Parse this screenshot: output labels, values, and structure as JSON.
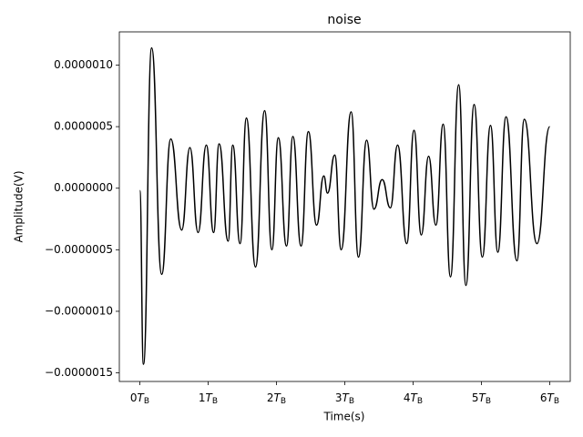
{
  "chart_data": {
    "type": "line",
    "title": "noise",
    "x_label": "Time(s)",
    "y_label": "Amplitude(V)",
    "x": [
      0,
      0.053,
      0.173,
      0.32,
      0.453,
      0.613,
      0.733,
      0.853,
      0.973,
      1.08,
      1.16,
      1.293,
      1.36,
      1.467,
      1.56,
      1.693,
      1.827,
      1.933,
      2.027,
      2.147,
      2.24,
      2.36,
      2.467,
      2.587,
      2.693,
      2.747,
      2.853,
      2.947,
      3.093,
      3.2,
      3.32,
      3.427,
      3.547,
      3.667,
      3.773,
      3.907,
      4.013,
      4.12,
      4.227,
      4.333,
      4.44,
      4.547,
      4.667,
      4.773,
      4.893,
      5.013,
      5.133,
      5.24,
      5.36,
      5.52,
      5.627,
      5.813,
      6.0
    ],
    "series": [
      {
        "color": "#000000",
        "values": [
          -2e-08,
          -1.43e-06,
          1.14e-06,
          -7e-07,
          4e-07,
          -3.4e-07,
          3.3e-07,
          -3.6e-07,
          3.5e-07,
          -3.6e-07,
          3.6e-07,
          -4.3e-07,
          3.5e-07,
          -4.5e-07,
          5.7e-07,
          -6.4e-07,
          6.3e-07,
          -5e-07,
          4.1e-07,
          -4.7e-07,
          4.2e-07,
          -4.7e-07,
          4.6e-07,
          -3e-07,
          1e-07,
          -4e-08,
          2.7e-07,
          -5e-07,
          6.2e-07,
          -5.6e-07,
          3.9e-07,
          -1.7e-07,
          7e-08,
          -1.6e-07,
          3.5e-07,
          -4.5e-07,
          4.7e-07,
          -3.8e-07,
          2.6e-07,
          -3e-07,
          5.2e-07,
          -7.2e-07,
          8.4e-07,
          -7.9e-07,
          6.8e-07,
          -5.6e-07,
          5.1e-07,
          -5.2e-07,
          5.8e-07,
          -5.9e-07,
          5.6e-07,
          -4.5e-07,
          5e-07
        ]
      }
    ],
    "xlim": [
      -0.3,
      6.3
    ],
    "ylim": [
      -1.57e-06,
      1.27e-06
    ],
    "xticks": [
      {
        "value": 0,
        "label": "0TB"
      },
      {
        "value": 1,
        "label": "1TB"
      },
      {
        "value": 2,
        "label": "2TB"
      },
      {
        "value": 3,
        "label": "3TB"
      },
      {
        "value": 4,
        "label": "4TB"
      },
      {
        "value": 5,
        "label": "5TB"
      },
      {
        "value": 6,
        "label": "6TB"
      }
    ],
    "yticks": [
      {
        "value": 1e-06,
        "label": "0.0000010"
      },
      {
        "value": 5e-07,
        "label": "0.0000005"
      },
      {
        "value": 0,
        "label": "0.0000000"
      },
      {
        "value": -5e-07,
        "label": "−0.0000005"
      },
      {
        "value": -1e-06,
        "label": "−0.0000010"
      },
      {
        "value": -1.5e-06,
        "label": "−0.0000015"
      }
    ]
  }
}
